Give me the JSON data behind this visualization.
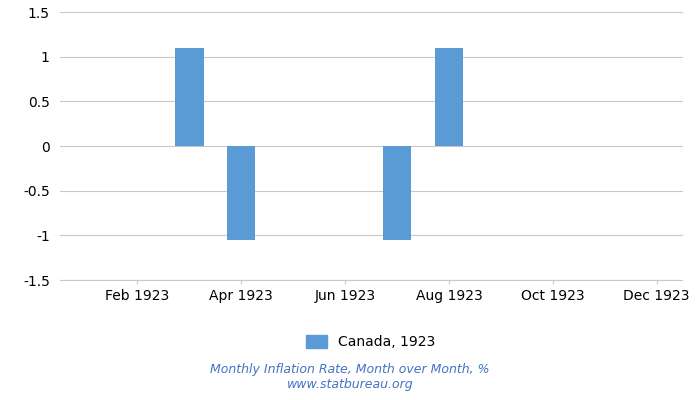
{
  "month_nums": [
    1,
    2,
    3,
    4,
    5,
    6,
    7,
    8,
    9,
    10,
    11,
    12
  ],
  "values": [
    0,
    0,
    1.1,
    -1.05,
    0,
    0,
    -1.05,
    1.1,
    0,
    0,
    0,
    0
  ],
  "bar_color": "#5b9bd5",
  "ylim": [
    -1.5,
    1.5
  ],
  "yticks": [
    -1.5,
    -1.0,
    -0.5,
    0,
    0.5,
    1.0,
    1.5
  ],
  "ytick_labels": [
    "-1.5",
    "-1",
    "-0.5",
    "0",
    "0.5",
    "1",
    "1.5"
  ],
  "xtick_labels": [
    "Feb 1923",
    "Apr 1923",
    "Jun 1923",
    "Aug 1923",
    "Oct 1923",
    "Dec 1923"
  ],
  "xtick_positions": [
    2,
    4,
    6,
    8,
    10,
    12
  ],
  "legend_label": "Canada, 1923",
  "footer_line1": "Monthly Inflation Rate, Month over Month, %",
  "footer_line2": "www.statbureau.org",
  "footer_color": "#4472c4",
  "bg_color": "#ffffff",
  "grid_color": "#c8c8c8",
  "bar_width": 0.55,
  "tick_fontsize": 10,
  "legend_fontsize": 10,
  "footer_fontsize": 9
}
